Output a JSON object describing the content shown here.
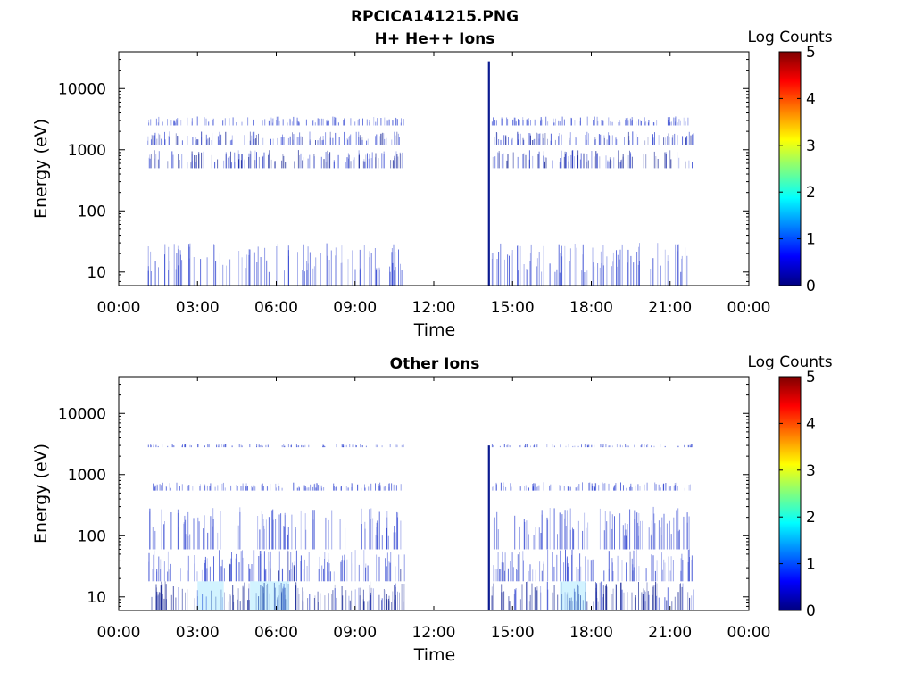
{
  "figure": {
    "filename": "RPCICA141215.PNG"
  },
  "colors": {
    "data_blue": "#2a3fd0",
    "data_dark": "#0a1a90",
    "data_cyan": "#7fdcff",
    "axis": "#000000",
    "colormap": [
      "#00007f",
      "#0000ff",
      "#007fff",
      "#00ffff",
      "#7fff7f",
      "#ffff00",
      "#ff7f00",
      "#ff0000",
      "#7f0000"
    ]
  },
  "chart_data": [
    {
      "type": "heatmap",
      "title": "H+ He++ Ions",
      "xlabel": "Time",
      "ylabel": "Energy (eV)",
      "xlim_hours": [
        0,
        24
      ],
      "ylim": [
        6,
        40000
      ],
      "yscale": "log",
      "x_ticks": [
        "00:00",
        "03:00",
        "06:00",
        "09:00",
        "12:00",
        "15:00",
        "18:00",
        "21:00",
        "00:00"
      ],
      "y_ticks": [
        "10",
        "100",
        "1000",
        "10000"
      ],
      "y_tick_values": [
        10,
        100,
        1000,
        10000
      ],
      "colorbar": {
        "label": "Log Counts",
        "range": [
          0,
          5
        ],
        "ticks": [
          "0",
          "1",
          "2",
          "3",
          "4",
          "5"
        ]
      },
      "data_intervals_hours": [
        [
          1.1,
          10.9
        ],
        [
          14.2,
          21.9
        ]
      ],
      "bands": [
        {
          "energy_eV": [
            500,
            1000
          ],
          "intensity_log": 1.0
        },
        {
          "energy_eV": [
            1200,
            2000
          ],
          "intensity_log": 0.8
        },
        {
          "energy_eV": [
            2500,
            3500
          ],
          "intensity_log": 0.4
        },
        {
          "energy_eV": [
            6,
            30
          ],
          "intensity_log": 0.6
        }
      ],
      "spike": {
        "time_hours": 14.1,
        "energy_eV": [
          6,
          28000
        ],
        "intensity_log": 1.2
      }
    },
    {
      "type": "heatmap",
      "title": "Other Ions",
      "xlabel": "Time",
      "ylabel": "Energy (eV)",
      "xlim_hours": [
        0,
        24
      ],
      "ylim": [
        6,
        40000
      ],
      "yscale": "log",
      "x_ticks": [
        "00:00",
        "03:00",
        "06:00",
        "09:00",
        "12:00",
        "15:00",
        "18:00",
        "21:00",
        "00:00"
      ],
      "y_ticks": [
        "10",
        "100",
        "1000",
        "10000"
      ],
      "y_tick_values": [
        10,
        100,
        1000,
        10000
      ],
      "colorbar": {
        "label": "Log Counts",
        "range": [
          0,
          5
        ],
        "ticks": [
          "0",
          "1",
          "2",
          "3",
          "4",
          "5"
        ]
      },
      "data_intervals_hours": [
        [
          1.1,
          10.9
        ],
        [
          14.2,
          21.9
        ]
      ],
      "bands": [
        {
          "energy_eV": [
            6,
            18
          ],
          "intensity_log": 1.4
        },
        {
          "energy_eV": [
            18,
            60
          ],
          "intensity_log": 0.7
        },
        {
          "energy_eV": [
            60,
            300
          ],
          "intensity_log": 0.3
        },
        {
          "energy_eV": [
            550,
            750
          ],
          "intensity_log": 0.4
        },
        {
          "energy_eV": [
            2800,
            3200
          ],
          "intensity_log": 0.2
        }
      ],
      "cyan_patches_hours": [
        [
          3.0,
          4.0
        ],
        [
          5.0,
          6.5
        ],
        [
          16.8,
          17.8
        ]
      ],
      "spike": {
        "time_hours": 14.1,
        "energy_eV": [
          6,
          3000
        ],
        "intensity_log": 1.0
      }
    }
  ]
}
